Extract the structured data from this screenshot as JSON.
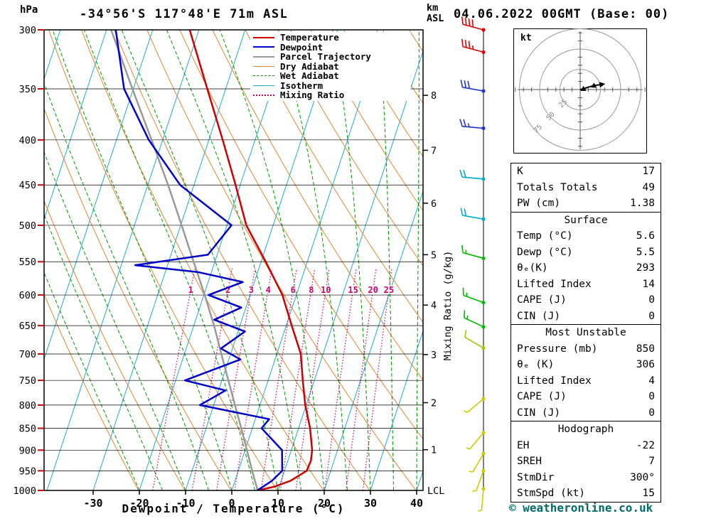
{
  "header": {
    "station": "-34°56'S 117°48'E 71m ASL",
    "datetime": "04.06.2022 00GMT (Base: 00)",
    "pressure_unit": "hPa",
    "km_unit_line1": "km",
    "km_unit_line2": "ASL"
  },
  "legend": {
    "items": [
      {
        "label": "Temperature",
        "color": "#cc0000",
        "dash": "solid",
        "width": 2.5
      },
      {
        "label": "Dewpoint",
        "color": "#0000cc",
        "dash": "solid",
        "width": 2.5
      },
      {
        "label": "Parcel Trajectory",
        "color": "#999999",
        "dash": "solid",
        "width": 2.5
      },
      {
        "label": "Dry Adiabat",
        "color": "#dd8833",
        "dash": "solid",
        "width": 1.5
      },
      {
        "label": "Wet Adiabat",
        "color": "#009900",
        "dash": "dashed",
        "width": 1.5
      },
      {
        "label": "Isotherm",
        "color": "#22aacc",
        "dash": "solid",
        "width": 1.5
      },
      {
        "label": "Mixing Ratio",
        "color": "#cc0066",
        "dash": "dotted",
        "width": 2
      }
    ]
  },
  "chart_data": {
    "type": "skewt",
    "xlabel": "Dewpoint / Temperature (°C)",
    "ylabel": "hPa",
    "pressure_ticks": [
      300,
      350,
      400,
      450,
      500,
      550,
      600,
      650,
      700,
      750,
      800,
      850,
      900,
      950,
      1000
    ],
    "temp_ticks": [
      -30,
      -20,
      -10,
      0,
      10,
      20,
      30,
      40
    ],
    "mixing_ratio_values": [
      1,
      2,
      3,
      4,
      6,
      8,
      10,
      15,
      20,
      25
    ],
    "mixing_ratio_axis_label": "Mixing Ratio (g/kg)",
    "lcl_label": "LCL",
    "km_ticks": [
      {
        "km": "8",
        "p": 356
      },
      {
        "km": "7",
        "p": 411
      },
      {
        "km": "6",
        "p": 472
      },
      {
        "km": "5",
        "p": 540
      },
      {
        "km": "4",
        "p": 616
      },
      {
        "km": "3",
        "p": 701
      },
      {
        "km": "2",
        "p": 795
      },
      {
        "km": "1",
        "p": 899
      }
    ],
    "temperature_profile": [
      [
        1000,
        5.6
      ],
      [
        990,
        9.0
      ],
      [
        975,
        12.0
      ],
      [
        950,
        14.8
      ],
      [
        925,
        15.0
      ],
      [
        900,
        14.5
      ],
      [
        850,
        12.5
      ],
      [
        800,
        9.8
      ],
      [
        750,
        7.5
      ],
      [
        700,
        5.2
      ],
      [
        650,
        1.2
      ],
      [
        600,
        -3.0
      ],
      [
        550,
        -9.0
      ],
      [
        500,
        -15.8
      ],
      [
        450,
        -21.0
      ],
      [
        400,
        -27.0
      ],
      [
        350,
        -34.0
      ],
      [
        300,
        -42.0
      ]
    ],
    "dewpoint_profile": [
      [
        1000,
        5.5
      ],
      [
        975,
        8.0
      ],
      [
        950,
        9.5
      ],
      [
        900,
        8.0
      ],
      [
        850,
        2.0
      ],
      [
        830,
        3.0
      ],
      [
        800,
        -13.0
      ],
      [
        770,
        -8.5
      ],
      [
        750,
        -18.0
      ],
      [
        710,
        -7.5
      ],
      [
        690,
        -12.5
      ],
      [
        660,
        -8.5
      ],
      [
        640,
        -16.0
      ],
      [
        620,
        -11.0
      ],
      [
        600,
        -19.0
      ],
      [
        580,
        -12.5
      ],
      [
        565,
        -23.0
      ],
      [
        555,
        -37.0
      ],
      [
        540,
        -22.0
      ],
      [
        500,
        -19.0
      ],
      [
        450,
        -33.0
      ],
      [
        400,
        -43.0
      ],
      [
        350,
        -52.0
      ],
      [
        300,
        -58.0
      ]
    ],
    "parcel_profile": [
      [
        1000,
        5.6
      ],
      [
        950,
        3.0
      ],
      [
        900,
        0.4
      ],
      [
        850,
        -2.4
      ],
      [
        800,
        -5.4
      ],
      [
        750,
        -8.6
      ],
      [
        700,
        -12.0
      ],
      [
        650,
        -15.6
      ],
      [
        600,
        -19.8
      ],
      [
        550,
        -24.6
      ],
      [
        500,
        -29.8
      ],
      [
        450,
        -35.6
      ],
      [
        400,
        -42.4
      ],
      [
        350,
        -50.2
      ],
      [
        300,
        -59.0
      ]
    ],
    "wind_barbs": [
      {
        "p": 300,
        "color": "#dd0000",
        "speed": 40,
        "dir": 285
      },
      {
        "p": 318,
        "color": "#dd0000",
        "speed": 35,
        "dir": 285
      },
      {
        "p": 352,
        "color": "#2233cc",
        "speed": 30,
        "dir": 280
      },
      {
        "p": 388,
        "color": "#2233cc",
        "speed": 25,
        "dir": 275
      },
      {
        "p": 443,
        "color": "#00aacc",
        "speed": 20,
        "dir": 275
      },
      {
        "p": 492,
        "color": "#00aacc",
        "speed": 20,
        "dir": 280
      },
      {
        "p": 545,
        "color": "#00bb00",
        "speed": 15,
        "dir": 285
      },
      {
        "p": 612,
        "color": "#00bb00",
        "speed": 15,
        "dir": 290
      },
      {
        "p": 652,
        "color": "#00bb00",
        "speed": 15,
        "dir": 295
      },
      {
        "p": 689,
        "color": "#99cc00",
        "speed": 10,
        "dir": 300
      },
      {
        "p": 787,
        "color": "#cccc00",
        "speed": 8,
        "dir": 230
      },
      {
        "p": 860,
        "color": "#cccc00",
        "speed": 5,
        "dir": 220
      },
      {
        "p": 908,
        "color": "#cccc00",
        "speed": 5,
        "dir": 210
      },
      {
        "p": 950,
        "color": "#cccc00",
        "speed": 5,
        "dir": 200
      },
      {
        "p": 996,
        "color": "#cccc00",
        "speed": 3,
        "dir": 185
      }
    ],
    "colors": {
      "temperature": "#cc0000",
      "dewpoint": "#0000cc",
      "parcel": "#999999",
      "dry_adiabat": "#dd8833",
      "wet_adiabat": "#009900",
      "isotherm": "#22aacc",
      "mixing_ratio": "#cc0066",
      "grid": "#000000",
      "pressure_tick": "#cc0000"
    }
  },
  "hodograph": {
    "unit_label": "kt",
    "rings": [
      25,
      50,
      75
    ],
    "trace": [
      [
        0,
        0
      ],
      [
        4,
        1
      ],
      [
        10,
        3
      ],
      [
        17,
        5
      ],
      [
        24,
        6
      ]
    ],
    "marker_indices": [
      1,
      3
    ]
  },
  "panels": {
    "indices": {
      "rows": [
        {
          "label": "K",
          "value": "17"
        },
        {
          "label": "Totals Totals",
          "value": "49"
        },
        {
          "label": "PW (cm)",
          "value": "1.38"
        }
      ]
    },
    "surface": {
      "title": "Surface",
      "rows": [
        {
          "label": "Temp (°C)",
          "value": "5.6"
        },
        {
          "label": "Dewp (°C)",
          "value": "5.5"
        },
        {
          "label": "θₑ(K)",
          "value": "293"
        },
        {
          "label": "Lifted Index",
          "value": "14"
        },
        {
          "label": "CAPE (J)",
          "value": "0"
        },
        {
          "label": "CIN (J)",
          "value": "0"
        }
      ]
    },
    "most_unstable": {
      "title": "Most Unstable",
      "rows": [
        {
          "label": "Pressure (mb)",
          "value": "850"
        },
        {
          "label": "θₑ (K)",
          "value": "306"
        },
        {
          "label": "Lifted Index",
          "value": "4"
        },
        {
          "label": "CAPE (J)",
          "value": "0"
        },
        {
          "label": "CIN (J)",
          "value": "0"
        }
      ]
    },
    "hodograph_panel": {
      "title": "Hodograph",
      "rows": [
        {
          "label": "EH",
          "value": "-22"
        },
        {
          "label": "SREH",
          "value": "7"
        },
        {
          "label": "StmDir",
          "value": "300°"
        },
        {
          "label": "StmSpd (kt)",
          "value": "15"
        }
      ]
    }
  },
  "footer": {
    "credit": "© weatheronline.co.uk"
  }
}
